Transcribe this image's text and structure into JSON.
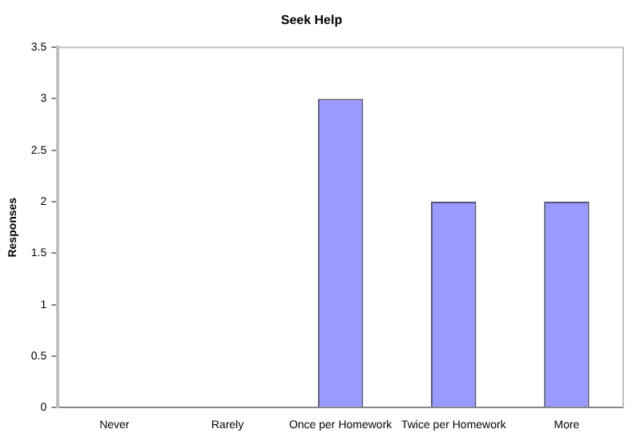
{
  "chart_data": {
    "type": "bar",
    "title": "Seek Help",
    "ylabel": "Responses",
    "categories": [
      "Never",
      "Rarely",
      "Once per Homework",
      "Twice per Homework",
      "More"
    ],
    "values": [
      0,
      0,
      3,
      2,
      2
    ],
    "color": "#9999ff",
    "ylim": [
      0,
      3.5
    ],
    "yticks": [
      0,
      0.5,
      1,
      1.5,
      2,
      2.5,
      3,
      3.5
    ],
    "grid": false,
    "legend": false
  }
}
